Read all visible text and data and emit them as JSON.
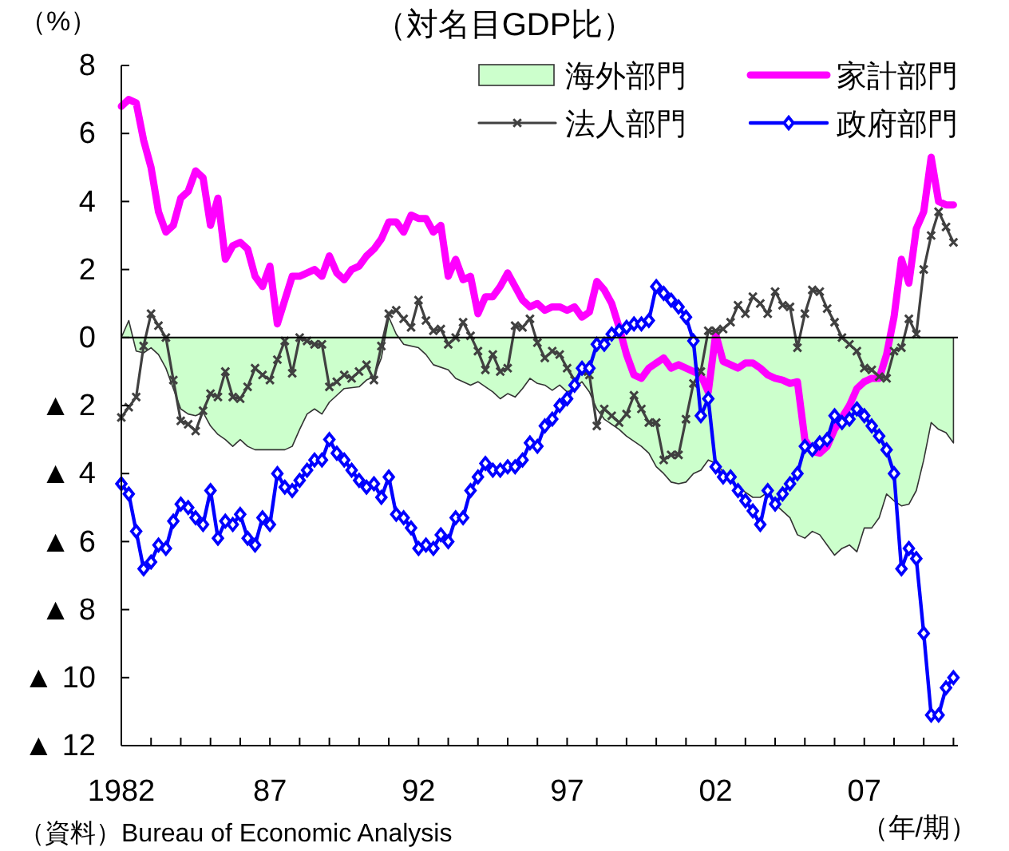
{
  "chart_data": {
    "type": "line",
    "title": "（対名目GDP比）",
    "ylabel": "（%）",
    "xlabel": "（年/期）",
    "annotations": [
      "（資料）Bureau of Economic Analysis"
    ],
    "x": [
      1982,
      1982.25,
      1982.5,
      1982.75,
      1983,
      1983.25,
      1983.5,
      1983.75,
      1984,
      1984.25,
      1984.5,
      1984.75,
      1985,
      1985.25,
      1985.5,
      1985.75,
      1986,
      1986.25,
      1986.5,
      1986.75,
      1987,
      1987.25,
      1987.5,
      1987.75,
      1988,
      1988.25,
      1988.5,
      1988.75,
      1989,
      1989.25,
      1989.5,
      1989.75,
      1990,
      1990.25,
      1990.5,
      1990.75,
      1991,
      1991.25,
      1991.5,
      1991.75,
      1992,
      1992.25,
      1992.5,
      1992.75,
      1993,
      1993.25,
      1993.5,
      1993.75,
      1994,
      1994.25,
      1994.5,
      1994.75,
      1995,
      1995.25,
      1995.5,
      1995.75,
      1996,
      1996.25,
      1996.5,
      1996.75,
      1997,
      1997.25,
      1997.5,
      1997.75,
      1998,
      1998.25,
      1998.5,
      1998.75,
      1999,
      1999.25,
      1999.5,
      1999.75,
      2000,
      2000.25,
      2000.5,
      2000.75,
      2001,
      2001.25,
      2001.5,
      2001.75,
      2002,
      2002.25,
      2002.5,
      2002.75,
      2003,
      2003.25,
      2003.5,
      2003.75,
      2004,
      2004.25,
      2004.5,
      2004.75,
      2005,
      2005.25,
      2005.5,
      2005.75,
      2006,
      2006.25,
      2006.5,
      2006.75,
      2007,
      2007.25,
      2007.5,
      2007.75,
      2008,
      2008.25,
      2008.5,
      2008.75,
      2009,
      2009.25,
      2009.5,
      2009.75,
      2010
    ],
    "xlim": [
      1982,
      2010.15
    ],
    "xticks": [
      1982,
      {
        "value": 1983,
        "label": null
      },
      {
        "value": 1984,
        "label": null
      },
      {
        "value": 1985,
        "label": null
      },
      {
        "value": 1986,
        "label": null
      },
      {
        "value": 1987,
        "label": "87"
      },
      {
        "value": 1988,
        "label": null
      },
      {
        "value": 1989,
        "label": null
      },
      {
        "value": 1990,
        "label": null
      },
      {
        "value": 1991,
        "label": null
      },
      {
        "value": 1992,
        "label": "92"
      },
      {
        "value": 1993,
        "label": null
      },
      {
        "value": 1994,
        "label": null
      },
      {
        "value": 1995,
        "label": null
      },
      {
        "value": 1996,
        "label": null
      },
      {
        "value": 1997,
        "label": "97"
      },
      {
        "value": 1998,
        "label": null
      },
      {
        "value": 1999,
        "label": null
      },
      {
        "value": 2000,
        "label": null
      },
      {
        "value": 2001,
        "label": null
      },
      {
        "value": 2002,
        "label": "02"
      },
      {
        "value": 2003,
        "label": null
      },
      {
        "value": 2004,
        "label": null
      },
      {
        "value": 2005,
        "label": null
      },
      {
        "value": 2006,
        "label": null
      },
      {
        "value": 2007,
        "label": "07"
      },
      {
        "value": 2008,
        "label": null
      },
      {
        "value": 2009,
        "label": null
      },
      {
        "value": 2010,
        "label": null
      }
    ],
    "ylim": [
      -12,
      8
    ],
    "yticks": [
      {
        "value": -12,
        "label": "▲ 12"
      },
      {
        "value": -10,
        "label": "▲ 10"
      },
      {
        "value": -8,
        "label": "▲ 8"
      },
      {
        "value": -6,
        "label": "▲ 6"
      },
      {
        "value": -4,
        "label": "▲ 4"
      },
      {
        "value": -2,
        "label": "▲ 2"
      },
      0,
      2,
      4,
      6,
      8
    ],
    "series": [
      {
        "name": "海外部門",
        "type": "area",
        "color": "#ccffcc",
        "x": [
          1982,
          1982.25,
          1982.5,
          1982.75,
          1983,
          1983.25,
          1983.5,
          1983.75,
          1984,
          1984.25,
          1984.5,
          1984.75,
          1985,
          1985.25,
          1985.5,
          1985.75,
          1986,
          1986.25,
          1986.5,
          1987,
          1987.5,
          1987.75,
          1988,
          1988.25,
          1988.5,
          1988.75,
          1989,
          1989.25,
          1989.5,
          1990,
          1990.25,
          1990.5,
          1990.75,
          1991,
          1991.25,
          1991.5,
          1992,
          1992.25,
          1992.5,
          1993,
          1993.25,
          1993.75,
          1994,
          1994.5,
          1994.75,
          1995,
          1995.25,
          1995.5,
          1995.75,
          1996,
          1996.25,
          1996.5,
          1996.75,
          1997,
          1997.25,
          1997.5,
          1997.75,
          1998,
          1998.25,
          1998.75,
          1999,
          1999.5,
          1999.75,
          2000,
          2000.25,
          2000.5,
          2000.75,
          2001,
          2001.25,
          2001.5,
          2001.75,
          2002,
          2002.5,
          2002.75,
          2003,
          2003.25,
          2003.5,
          2003.75,
          2004,
          2004.25,
          2004.5,
          2004.75,
          2005,
          2005.25,
          2005.5,
          2005.75,
          2006,
          2006.25,
          2006.5,
          2006.75,
          2007,
          2007.25,
          2007.5,
          2007.75,
          2008,
          2008.25,
          2008.5,
          2008.75,
          2009,
          2009.25,
          2009.5,
          2009.75,
          2010
        ],
        "values": [
          0,
          0.5,
          -0.4,
          -0.45,
          -0.3,
          -0.5,
          -0.9,
          -1.5,
          -2.1,
          -2.25,
          -2.3,
          -2.2,
          -2.6,
          -2.85,
          -3.0,
          -3.2,
          -3.0,
          -3.2,
          -3.3,
          -3.3,
          -3.3,
          -3.2,
          -2.7,
          -2.25,
          -2.1,
          -2.25,
          -1.9,
          -1.7,
          -1.5,
          -1.45,
          -1.25,
          -1.15,
          -0.6,
          0.6,
          0.1,
          -0.2,
          -0.3,
          -0.5,
          -0.8,
          -0.95,
          -1.2,
          -1.4,
          -1.3,
          -1.6,
          -1.8,
          -1.65,
          -1.75,
          -1.5,
          -1.2,
          -1.35,
          -1.4,
          -1.55,
          -1.4,
          -1.6,
          -1.5,
          -1.3,
          -1.6,
          -2.1,
          -2.4,
          -2.7,
          -2.9,
          -3.2,
          -3.4,
          -3.8,
          -4.0,
          -4.25,
          -4.3,
          -4.25,
          -4.0,
          -3.9,
          -3.6,
          -3.7,
          -4.2,
          -4.4,
          -4.55,
          -4.7,
          -4.7,
          -4.55,
          -4.9,
          -5.1,
          -5.3,
          -5.8,
          -5.9,
          -5.7,
          -5.8,
          -6.1,
          -6.4,
          -6.2,
          -6.1,
          -6.3,
          -5.6,
          -5.6,
          -5.3,
          -4.6,
          -4.8,
          -4.95,
          -4.9,
          -4.5,
          -3.6,
          -2.5,
          -2.7,
          -2.8,
          -3.1
        ]
      },
      {
        "name": "家計部門",
        "color": "#ff00ff",
        "marker": "none",
        "values": [
          6.8,
          7.0,
          6.9,
          5.8,
          5.0,
          3.7,
          3.1,
          3.3,
          4.1,
          4.3,
          4.9,
          4.7,
          3.3,
          4.1,
          2.3,
          2.7,
          2.8,
          2.6,
          1.8,
          1.5,
          2.1,
          0.4,
          1.1,
          1.8,
          1.8,
          1.9,
          2.0,
          1.8,
          2.4,
          1.9,
          1.7,
          2.0,
          2.1,
          2.4,
          2.6,
          2.9,
          3.4,
          3.4,
          3.1,
          3.6,
          3.5,
          3.5,
          3.1,
          3.3,
          1.8,
          2.3,
          1.7,
          1.8,
          0.7,
          1.2,
          1.2,
          1.5,
          1.9,
          1.5,
          1.1,
          0.9,
          1.0,
          0.8,
          0.9,
          0.9,
          0.8,
          0.9,
          0.6,
          0.75,
          1.65,
          1.4,
          1.0,
          0.3,
          -0.5,
          -1.1,
          -1.2,
          -0.9,
          -0.75,
          -0.6,
          -0.9,
          -0.8,
          -0.9,
          -1.0,
          -1.1,
          -1.6,
          0.1,
          -0.7,
          -0.8,
          -0.9,
          -0.75,
          -0.75,
          -0.9,
          -1.1,
          -1.2,
          -1.25,
          -1.35,
          -1.3,
          -3.0,
          -3.35,
          -3.4,
          -3.2,
          -2.7,
          -2.35,
          -2.0,
          -1.5,
          -1.3,
          -1.2,
          -1.2,
          -0.5,
          0.6,
          2.3,
          1.6,
          3.2,
          3.7,
          5.3,
          4.0,
          3.9,
          3.9
        ]
      },
      {
        "name": "法人部門",
        "color": "#404040",
        "marker": "cross",
        "values": [
          -2.35,
          -2.05,
          -1.75,
          -0.25,
          0.7,
          0.35,
          0.0,
          -1.25,
          -2.45,
          -2.55,
          -2.75,
          -2.15,
          -1.65,
          -1.75,
          -1.0,
          -1.75,
          -1.8,
          -1.45,
          -0.9,
          -1.1,
          -1.25,
          -0.65,
          -0.1,
          -1.05,
          0.0,
          -0.1,
          -0.2,
          -0.2,
          -1.45,
          -1.3,
          -1.1,
          -1.2,
          -1.0,
          -0.8,
          -1.25,
          -0.25,
          0.7,
          0.8,
          0.55,
          0.3,
          1.1,
          0.5,
          0.2,
          0.25,
          -0.2,
          0.0,
          0.45,
          0.05,
          -0.4,
          -0.95,
          -0.5,
          -1.0,
          -0.9,
          0.35,
          0.3,
          0.55,
          -0.15,
          -0.6,
          -0.4,
          -0.5,
          -0.9,
          -1.25,
          -1.0,
          -1.1,
          -2.6,
          -2.1,
          -2.3,
          -2.5,
          -2.25,
          -1.7,
          -2.1,
          -2.5,
          -2.5,
          -3.6,
          -3.45,
          -3.45,
          -2.4,
          -1.35,
          -1.0,
          0.2,
          0.2,
          0.25,
          0.45,
          0.95,
          0.7,
          1.2,
          1.0,
          0.7,
          1.35,
          0.95,
          0.9,
          -0.3,
          0.7,
          1.4,
          1.35,
          0.85,
          0.45,
          0.0,
          -0.2,
          -0.4,
          -0.9,
          -0.95,
          -1.15,
          -1.2,
          -0.4,
          -0.3,
          0.55,
          0.1,
          2.0,
          3.0,
          3.7,
          3.25,
          2.8
        ]
      },
      {
        "name": "政府部門",
        "color": "#0000ff",
        "marker": "diamond",
        "values": [
          -4.3,
          -4.6,
          -5.7,
          -6.8,
          -6.6,
          -6.1,
          -6.2,
          -5.4,
          -4.9,
          -5.0,
          -5.3,
          -5.5,
          -4.5,
          -5.9,
          -5.4,
          -5.5,
          -5.2,
          -5.9,
          -6.1,
          -5.3,
          -5.5,
          -4.0,
          -4.4,
          -4.5,
          -4.2,
          -3.9,
          -3.6,
          -3.6,
          -3.0,
          -3.4,
          -3.6,
          -3.9,
          -4.2,
          -4.4,
          -4.3,
          -4.7,
          -4.1,
          -5.2,
          -5.3,
          -5.6,
          -6.2,
          -6.1,
          -6.2,
          -5.8,
          -6.0,
          -5.3,
          -5.3,
          -4.5,
          -4.1,
          -3.7,
          -3.9,
          -3.9,
          -3.8,
          -3.8,
          -3.6,
          -3.1,
          -3.2,
          -2.6,
          -2.4,
          -2.0,
          -1.8,
          -1.4,
          -0.9,
          -0.9,
          -0.2,
          -0.2,
          0.1,
          0.2,
          0.3,
          0.4,
          0.4,
          0.5,
          1.5,
          1.3,
          1.1,
          0.9,
          0.6,
          -0.1,
          -2.3,
          -1.8,
          -3.8,
          -4.1,
          -4.1,
          -4.5,
          -4.8,
          -5.1,
          -5.5,
          -4.5,
          -4.9,
          -4.6,
          -4.3,
          -4.0,
          -3.2,
          -3.3,
          -3.1,
          -3.0,
          -2.3,
          -2.5,
          -2.4,
          -2.1,
          -2.3,
          -2.6,
          -2.9,
          -3.3,
          -4.0,
          -6.8,
          -6.2,
          -6.5,
          -8.7,
          -11.1,
          -11.1,
          -10.3,
          -10.0
        ]
      }
    ],
    "ref_lines": [
      {
        "axis": "y",
        "value": 0,
        "color": "#000000"
      }
    ],
    "legend": "top right"
  }
}
